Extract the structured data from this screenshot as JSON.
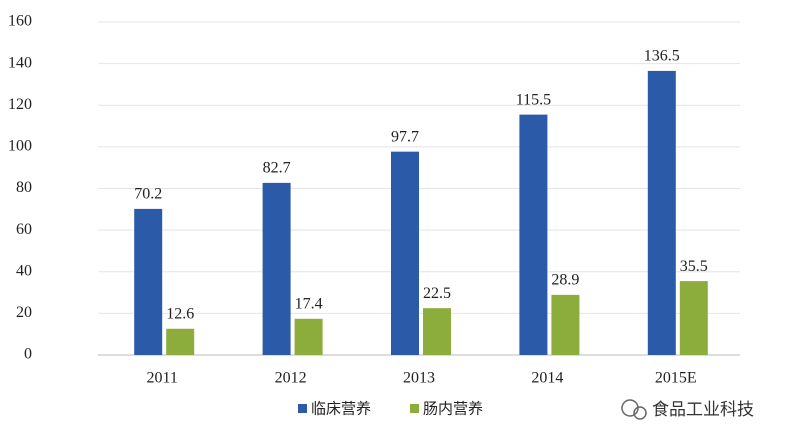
{
  "chart_data": {
    "type": "bar",
    "categories": [
      "2011",
      "2012",
      "2013",
      "2014",
      "2015E"
    ],
    "series": [
      {
        "name": "临床营养",
        "color": "#2b5aa8",
        "values": [
          70.2,
          82.7,
          97.7,
          115.5,
          136.5
        ]
      },
      {
        "name": "肠内营养",
        "color": "#8cad3c",
        "values": [
          12.6,
          17.4,
          22.5,
          28.9,
          35.5
        ]
      }
    ],
    "ylim": [
      0,
      160
    ],
    "yticks": [
      0,
      20,
      40,
      60,
      80,
      100,
      120,
      140,
      160
    ],
    "grid": true
  },
  "watermark": "食品工业科技"
}
